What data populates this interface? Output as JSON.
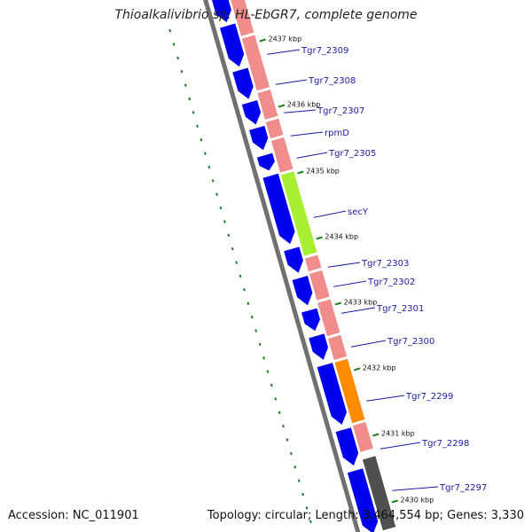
{
  "title": "Thioalkalivibrio sp. HL-EbGR7, complete genome",
  "footer": {
    "accession": "Accession: NC_011901",
    "summary": "Topology: circular; Length: 3,464,554 bp; Genes: 3,330"
  },
  "colors": {
    "backbone": "#707070",
    "gene_arrow": "#0000ee",
    "cds_band": "#f08c8c",
    "secY_band": "#a8ee33",
    "orange_band": "#ff8c00",
    "dark_band": "#505050",
    "label_line": "#1a1aa6",
    "tick": "#1b7d1b"
  },
  "scale": {
    "unit": "kbp",
    "ticks": [
      "2437 kbp",
      "2436 kbp",
      "2435 kbp",
      "2434 kbp",
      "2433 kbp",
      "2432 kbp",
      "2431 kbp",
      "2430 kbp"
    ]
  },
  "genes": [
    {
      "label": "Tgr7_2309"
    },
    {
      "label": "Tgr7_2308"
    },
    {
      "label": "Tgr7_2307"
    },
    {
      "label": "rpmD"
    },
    {
      "label": "Tgr7_2305"
    },
    {
      "label": "secY"
    },
    {
      "label": "Tgr7_2303"
    },
    {
      "label": "Tgr7_2302"
    },
    {
      "label": "Tgr7_2301"
    },
    {
      "label": "Tgr7_2300"
    },
    {
      "label": "Tgr7_2299"
    },
    {
      "label": "Tgr7_2298"
    },
    {
      "label": "Tgr7_2297"
    }
  ]
}
